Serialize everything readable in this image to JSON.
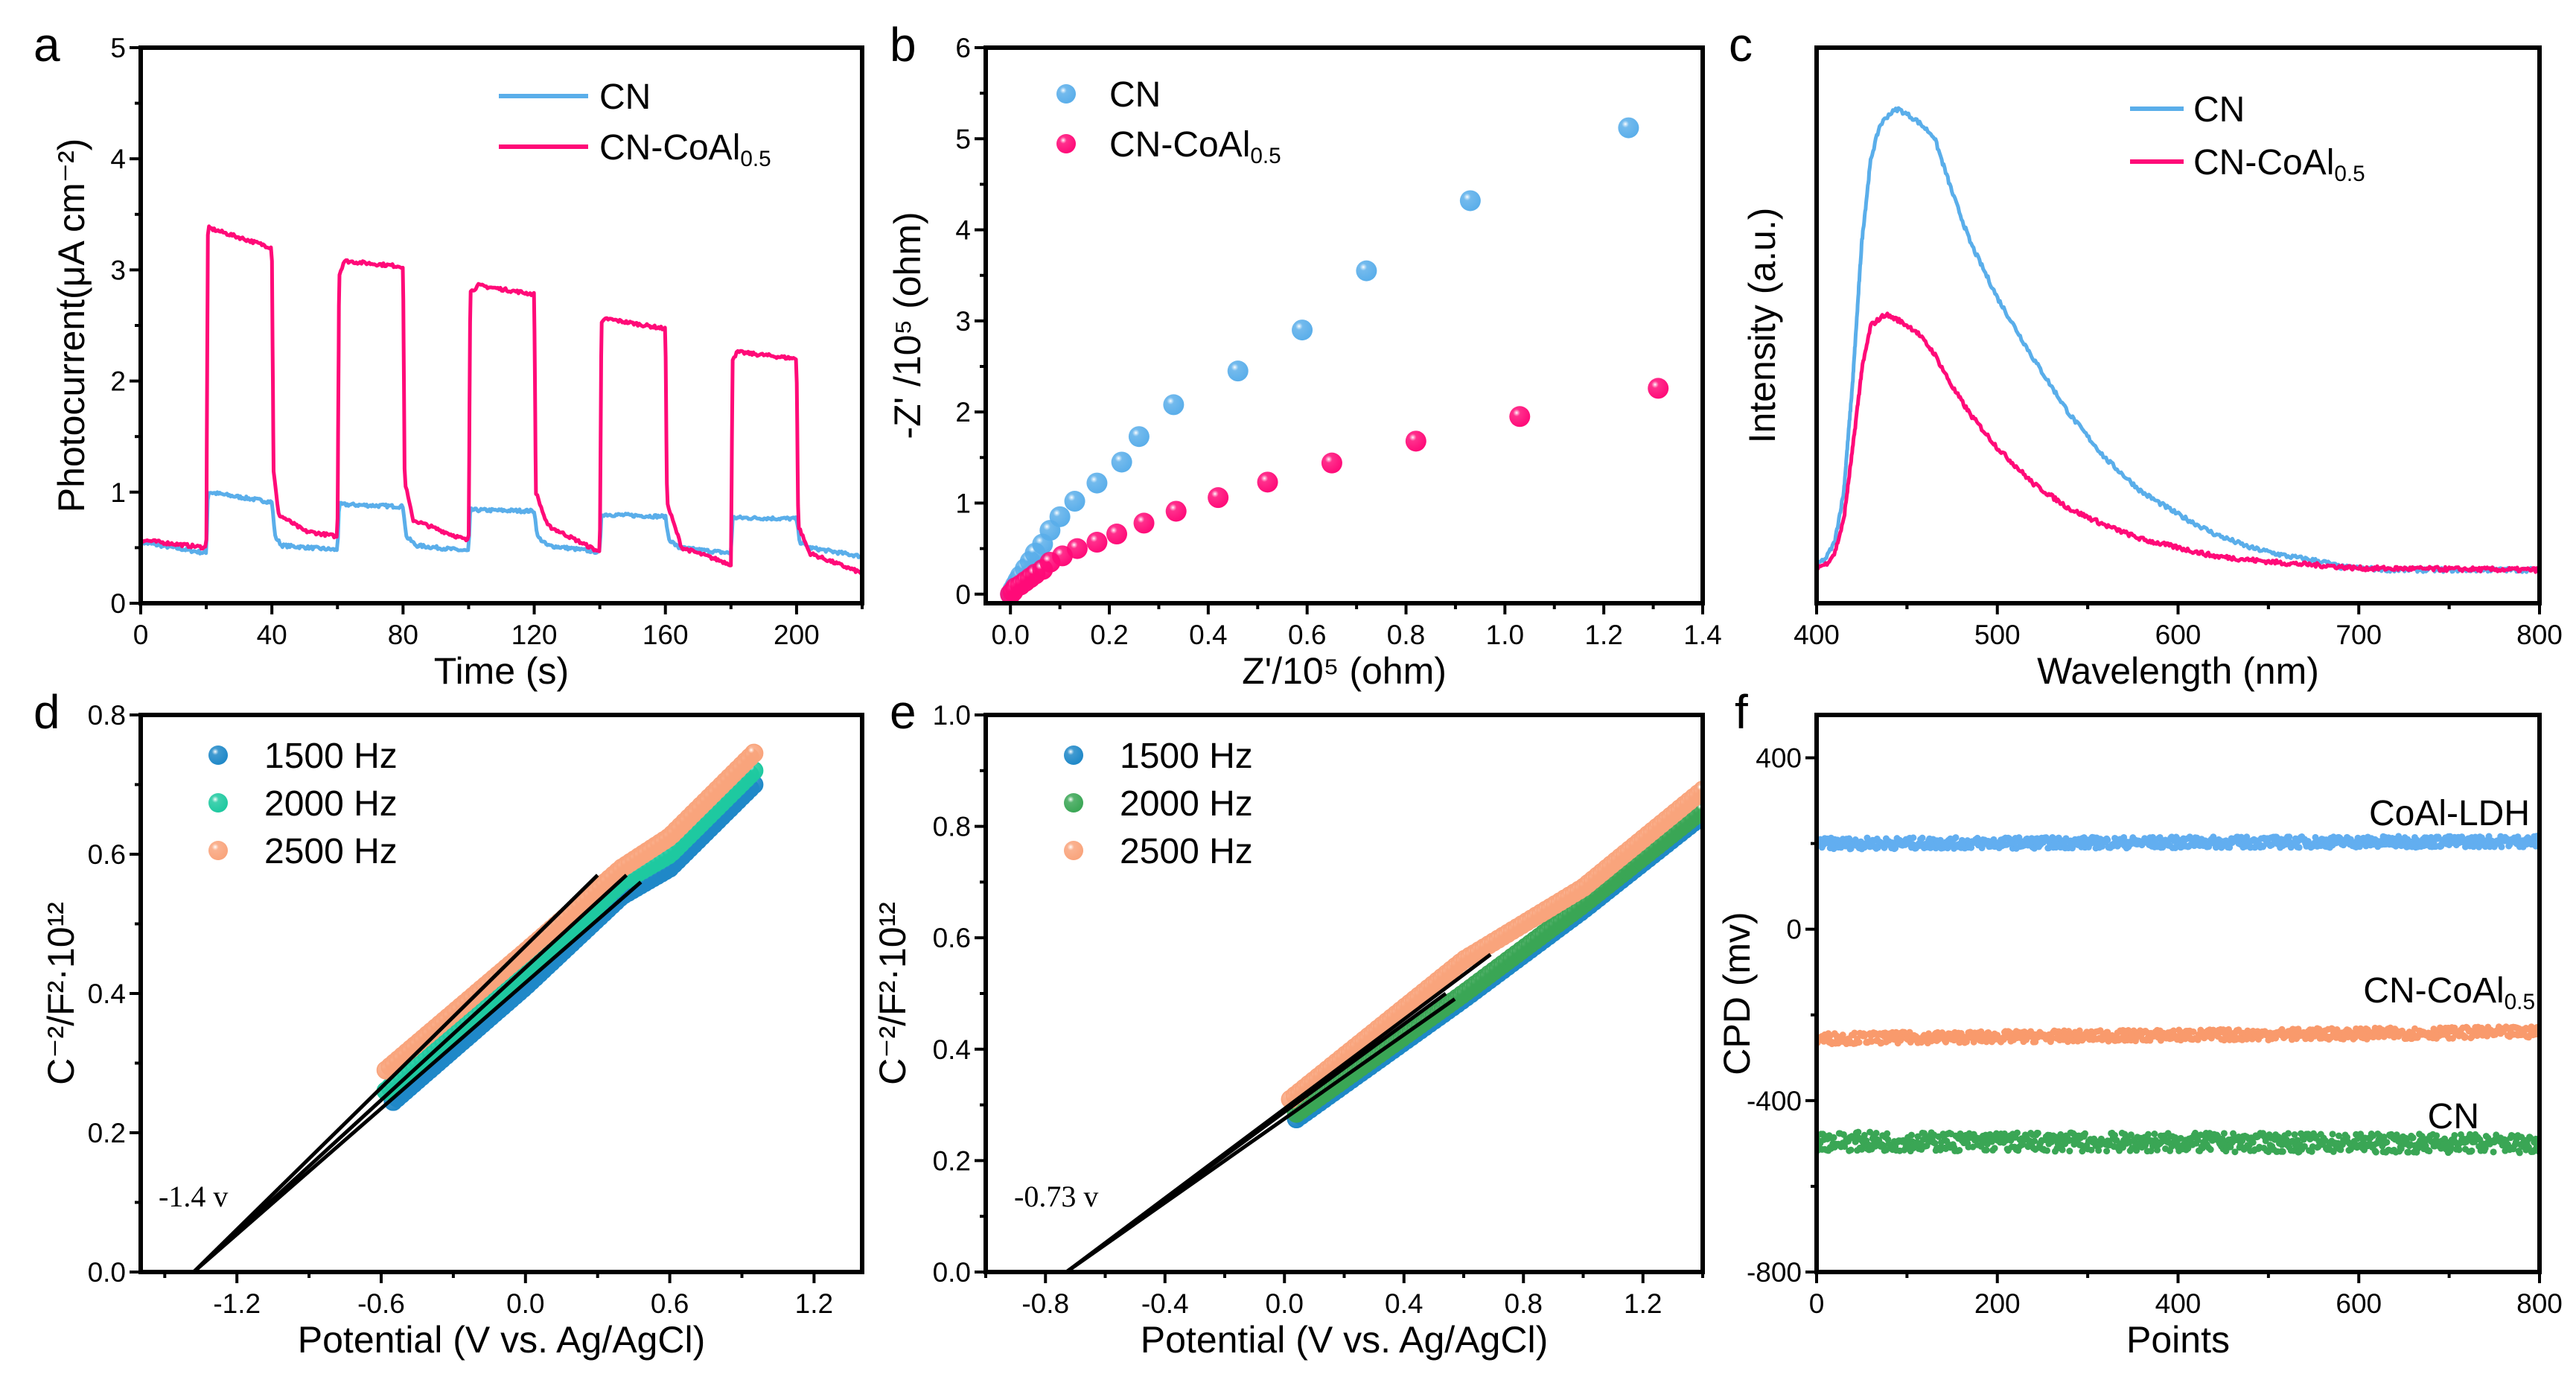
{
  "chart_data": [
    {
      "panel": "a",
      "type": "line",
      "xlabel": "Time (s)",
      "ylabel": "Photocurrent(μA cm⁻²)",
      "xlim": [
        0,
        220
      ],
      "ylim": [
        0,
        5
      ],
      "xticks": [
        0,
        40,
        80,
        120,
        160,
        200
      ],
      "yticks": [
        0,
        1,
        2,
        3,
        4,
        5
      ],
      "grid": false,
      "legend": "top-right",
      "series": [
        {
          "name": "CN",
          "color": "#5aaeea",
          "points": [
            [
              0,
              0.55
            ],
            [
              20,
              0.45
            ],
            [
              20.5,
              1.0
            ],
            [
              40,
              0.91
            ],
            [
              41,
              0.6
            ],
            [
              43,
              0.52
            ],
            [
              60,
              0.48
            ],
            [
              60.5,
              0.89
            ],
            [
              80,
              0.87
            ],
            [
              81,
              0.6
            ],
            [
              84,
              0.52
            ],
            [
              100,
              0.47
            ],
            [
              100.5,
              0.84
            ],
            [
              120,
              0.83
            ],
            [
              121,
              0.6
            ],
            [
              124,
              0.52
            ],
            [
              140,
              0.46
            ],
            [
              140.5,
              0.8
            ],
            [
              160,
              0.78
            ],
            [
              161,
              0.58
            ],
            [
              164,
              0.5
            ],
            [
              180,
              0.45
            ],
            [
              180.5,
              0.77
            ],
            [
              200,
              0.76
            ],
            [
              201,
              0.55
            ],
            [
              204,
              0.5
            ],
            [
              220,
              0.42
            ]
          ]
        },
        {
          "name": "CN-CoAl0.5",
          "color": "#ff0a78",
          "points": [
            [
              0,
              0.57
            ],
            [
              20,
              0.5
            ],
            [
              20.5,
              3.38
            ],
            [
              40,
              3.2
            ],
            [
              40.5,
              1.2
            ],
            [
              42,
              0.8
            ],
            [
              50,
              0.65
            ],
            [
              60,
              0.6
            ],
            [
              60.5,
              2.95
            ],
            [
              62,
              3.08
            ],
            [
              80,
              3.03
            ],
            [
              80.5,
              1.1
            ],
            [
              83,
              0.75
            ],
            [
              100,
              0.56
            ],
            [
              100.5,
              2.8
            ],
            [
              103,
              2.86
            ],
            [
              120,
              2.78
            ],
            [
              120.5,
              1.0
            ],
            [
              124,
              0.7
            ],
            [
              140,
              0.46
            ],
            [
              140.5,
              2.52
            ],
            [
              142,
              2.56
            ],
            [
              160,
              2.47
            ],
            [
              160.5,
              0.9
            ],
            [
              165,
              0.5
            ],
            [
              180,
              0.35
            ],
            [
              180.5,
              2.2
            ],
            [
              182,
              2.26
            ],
            [
              200,
              2.2
            ],
            [
              200.5,
              0.7
            ],
            [
              204,
              0.45
            ],
            [
              220,
              0.27
            ]
          ]
        }
      ]
    },
    {
      "panel": "b",
      "type": "scatter",
      "xlabel": "Z'/10⁵ (ohm)",
      "ylabel": "-Z' /10⁵ (ohm)",
      "xlim": [
        -0.05,
        1.4
      ],
      "ylim": [
        -0.1,
        6
      ],
      "xticks": [
        0.0,
        0.2,
        0.4,
        0.6,
        0.8,
        1.0,
        1.2,
        1.4
      ],
      "yticks": [
        0,
        1,
        2,
        3,
        4,
        5,
        6
      ],
      "tick_decimals_x": 1,
      "grid": false,
      "legend": "top-left",
      "series": [
        {
          "name": "CN",
          "color": "#5aaeea",
          "points": [
            [
              0,
              0
            ],
            [
              0.005,
              0.05
            ],
            [
              0.01,
              0.1
            ],
            [
              0.015,
              0.15
            ],
            [
              0.02,
              0.2
            ],
            [
              0.03,
              0.28
            ],
            [
              0.04,
              0.36
            ],
            [
              0.05,
              0.45
            ],
            [
              0.065,
              0.55
            ],
            [
              0.08,
              0.7
            ],
            [
              0.1,
              0.85
            ],
            [
              0.13,
              1.02
            ],
            [
              0.175,
              1.22
            ],
            [
              0.225,
              1.45
            ],
            [
              0.26,
              1.73
            ],
            [
              0.33,
              2.08
            ],
            [
              0.46,
              2.45
            ],
            [
              0.59,
              2.9
            ],
            [
              0.72,
              3.55
            ],
            [
              0.93,
              4.32
            ],
            [
              1.25,
              5.12
            ]
          ]
        },
        {
          "name": "CN-CoAl0.5",
          "color": "#ff0a78",
          "points": [
            [
              0,
              0
            ],
            [
              0.005,
              0.03
            ],
            [
              0.01,
              0.07
            ],
            [
              0.02,
              0.1
            ],
            [
              0.03,
              0.14
            ],
            [
              0.04,
              0.18
            ],
            [
              0.05,
              0.22
            ],
            [
              0.065,
              0.27
            ],
            [
              0.08,
              0.35
            ],
            [
              0.105,
              0.42
            ],
            [
              0.135,
              0.5
            ],
            [
              0.175,
              0.57
            ],
            [
              0.215,
              0.66
            ],
            [
              0.27,
              0.78
            ],
            [
              0.335,
              0.91
            ],
            [
              0.42,
              1.06
            ],
            [
              0.52,
              1.23
            ],
            [
              0.65,
              1.44
            ],
            [
              0.82,
              1.68
            ],
            [
              1.03,
              1.95
            ],
            [
              1.31,
              2.26
            ]
          ]
        }
      ]
    },
    {
      "panel": "c",
      "type": "line",
      "xlabel": "Wavelength (nm)",
      "ylabel": "Intensity (a.u.)",
      "xlim": [
        400,
        800
      ],
      "ylim": [
        0,
        100
      ],
      "xticks": [
        400,
        500,
        600,
        700,
        800
      ],
      "yticks": [],
      "grid": false,
      "legend": "top-right",
      "series": [
        {
          "name": "CN",
          "color": "#5aaeea",
          "points": [
            [
              400,
              7
            ],
            [
              405,
              8
            ],
            [
              410,
              11
            ],
            [
              415,
              20
            ],
            [
              420,
              40
            ],
            [
              425,
              65
            ],
            [
              430,
              80
            ],
            [
              435,
              86
            ],
            [
              440,
              88
            ],
            [
              445,
              89
            ],
            [
              455,
              87
            ],
            [
              465,
              84
            ],
            [
              475,
              74
            ],
            [
              485,
              65
            ],
            [
              500,
              55
            ],
            [
              520,
              44
            ],
            [
              540,
              34
            ],
            [
              560,
              26
            ],
            [
              580,
              20
            ],
            [
              600,
              16
            ],
            [
              620,
              12.5
            ],
            [
              640,
              10
            ],
            [
              660,
              8.5
            ],
            [
              680,
              7.5
            ],
            [
              690,
              6.5
            ],
            [
              720,
              6
            ],
            [
              800,
              6
            ]
          ]
        },
        {
          "name": "CN-CoAl0.5",
          "color": "#ff0a78",
          "points": [
            [
              400,
              6.5
            ],
            [
              405,
              7
            ],
            [
              410,
              9
            ],
            [
              415,
              15
            ],
            [
              420,
              28
            ],
            [
              425,
              42
            ],
            [
              430,
              50
            ],
            [
              438,
              52
            ],
            [
              445,
              51
            ],
            [
              455,
              49
            ],
            [
              465,
              45
            ],
            [
              475,
              39
            ],
            [
              485,
              34
            ],
            [
              500,
              28
            ],
            [
              520,
              21.5
            ],
            [
              540,
              17
            ],
            [
              560,
              14
            ],
            [
              580,
              11.5
            ],
            [
              600,
              10
            ],
            [
              620,
              8.5
            ],
            [
              640,
              7.8
            ],
            [
              660,
              7.2
            ],
            [
              680,
              6.8
            ],
            [
              700,
              6.3
            ],
            [
              800,
              6
            ]
          ]
        }
      ]
    },
    {
      "panel": "d",
      "type": "scatter",
      "xlabel": "Potential (V vs. Ag/AgCl)",
      "ylabel": "C⁻²/F²·10¹²",
      "xlim": [
        -1.6,
        1.4
      ],
      "ylim": [
        0,
        0.8
      ],
      "xticks": [
        -1.2,
        -0.6,
        0.0,
        0.6,
        1.2
      ],
      "yticks": [
        0.0,
        0.2,
        0.4,
        0.6,
        0.8
      ],
      "tick_decimals_x": 1,
      "tick_decimals_y": 1,
      "grid": false,
      "legend": "top-left",
      "annotation": "-1.4 v",
      "series": [
        {
          "name": "1500 Hz",
          "color": "#1f88c8",
          "points": [
            [
              -0.55,
              0.245
            ],
            [
              0.0,
              0.41
            ],
            [
              0.4,
              0.54
            ],
            [
              0.6,
              0.58
            ],
            [
              0.95,
              0.7
            ]
          ]
        },
        {
          "name": "2000 Hz",
          "color": "#1ec9a0",
          "points": [
            [
              -0.58,
              0.26
            ],
            [
              0.0,
              0.43
            ],
            [
              0.4,
              0.56
            ],
            [
              0.6,
              0.6
            ],
            [
              0.95,
              0.72
            ]
          ]
        },
        {
          "name": "2500 Hz",
          "color": "#f9a47c",
          "points": [
            [
              -0.58,
              0.29
            ],
            [
              0.0,
              0.46
            ],
            [
              0.4,
              0.58
            ],
            [
              0.6,
              0.625
            ],
            [
              0.95,
              0.745
            ]
          ]
        }
      ],
      "fit_lines": [
        [
          [
            -1.38,
            0
          ],
          [
            0.3,
            0.57
          ]
        ],
        [
          [
            -1.38,
            0
          ],
          [
            0.42,
            0.57
          ]
        ],
        [
          [
            -1.38,
            0
          ],
          [
            0.48,
            0.56
          ]
        ]
      ]
    },
    {
      "panel": "e",
      "type": "scatter",
      "xlabel": "Potential (V vs. Ag/AgCl)",
      "ylabel": "C⁻²/F²·10¹²",
      "xlim": [
        -1.0,
        1.4
      ],
      "ylim": [
        0,
        1.0
      ],
      "xticks": [
        -0.8,
        -0.4,
        0.0,
        0.4,
        0.8,
        1.2
      ],
      "yticks": [
        0.0,
        0.2,
        0.4,
        0.6,
        0.8,
        1.0
      ],
      "tick_decimals_x": 1,
      "tick_decimals_y": 1,
      "grid": false,
      "legend": "top-left",
      "annotation": "-0.73 v",
      "series": [
        {
          "name": "1500 Hz",
          "color": "#1f88c8",
          "points": [
            [
              0.04,
              0.275
            ],
            [
              0.6,
              0.49
            ],
            [
              1.0,
              0.65
            ],
            [
              1.4,
              0.82
            ]
          ]
        },
        {
          "name": "2000 Hz",
          "color": "#3aa655",
          "points": [
            [
              0.04,
              0.285
            ],
            [
              0.6,
              0.5
            ],
            [
              1.0,
              0.66
            ],
            [
              1.4,
              0.83
            ]
          ]
        },
        {
          "name": "2500 Hz",
          "color": "#f9a47c",
          "points": [
            [
              0.02,
              0.31
            ],
            [
              0.6,
              0.56
            ],
            [
              1.0,
              0.69
            ],
            [
              1.4,
              0.865
            ]
          ]
        }
      ],
      "fit_lines": [
        [
          [
            -0.73,
            0
          ],
          [
            0.69,
            0.57
          ]
        ],
        [
          [
            -0.73,
            0
          ],
          [
            0.54,
            0.5
          ]
        ],
        [
          [
            -0.73,
            0
          ],
          [
            0.57,
            0.49
          ]
        ]
      ]
    },
    {
      "panel": "f",
      "type": "scatter",
      "xlabel": "Points",
      "ylabel": "CPD (mv)",
      "xlim": [
        0,
        800
      ],
      "ylim": [
        -800,
        500
      ],
      "xticks": [
        0,
        200,
        400,
        600,
        800
      ],
      "yticks": [
        -800,
        -400,
        0,
        400
      ],
      "grid": false,
      "legend": "inline-labels",
      "series": [
        {
          "name": "CoAl-LDH",
          "color": "#62aef0",
          "points": [
            [
              0,
              200
            ],
            [
              800,
              205
            ]
          ]
        },
        {
          "name": "CN-CoAl0.5",
          "color": "#f99a6c",
          "points": [
            [
              0,
              -255
            ],
            [
              800,
              -240
            ]
          ]
        },
        {
          "name": "CN",
          "color": "#3aa655",
          "points": [
            [
              0,
              -495
            ],
            [
              800,
              -500
            ]
          ]
        }
      ]
    }
  ]
}
